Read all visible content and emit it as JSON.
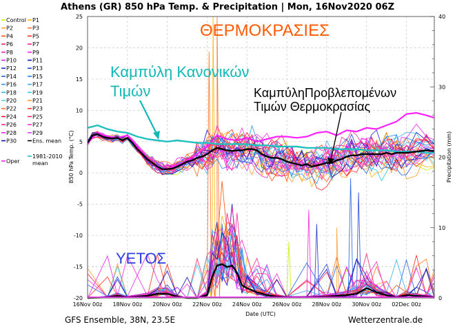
{
  "chart_data": {
    "type": "line",
    "title": "Athens  (GR)  850 hPa Temp. & Precipitation | Mon, 16Nov2020 06Z",
    "xlabel": "Date (UTC)",
    "ylabel": "850 hPa Temp. (°C)",
    "y2label": "Precipitation (mm)",
    "ylim": [
      -20,
      25
    ],
    "y2lim": [
      0,
      40
    ],
    "xlim_days": [
      0,
      17.4
    ],
    "yticks": [
      "25",
      "20",
      "15",
      "10",
      "5",
      "0",
      "-5",
      "-10",
      "-15",
      "-20"
    ],
    "y2ticks": [
      "40",
      "30",
      "20",
      "10",
      "0"
    ],
    "xticks": [
      {
        "day": 0,
        "label": "16Nov 00z"
      },
      {
        "day": 2,
        "label": "18Nov 00z"
      },
      {
        "day": 4,
        "label": "20Nov 00z"
      },
      {
        "day": 6,
        "label": "22Nov 00z"
      },
      {
        "day": 8,
        "label": "24Nov 00z"
      },
      {
        "day": 10,
        "label": "26Nov 00z"
      },
      {
        "day": 12,
        "label": "28Nov 00z"
      },
      {
        "day": 14,
        "label": "30Nov 00z"
      },
      {
        "day": 16,
        "label": "02Dec 00z"
      }
    ],
    "grid": true,
    "legend_placement": "left-outside",
    "footer_left": "GFS Ensemble, 38N, 23.5E",
    "footer_right": "Wetterzentrale.de",
    "annotations": [
      {
        "text": "ΘΕΡΜΟΚΡΑΣΙΕΣ",
        "color": "#ff5a00"
      },
      {
        "text_lines": [
          "Καμπύλη Κανονικών",
          "Τιμών"
        ],
        "color": "#10b8b8"
      },
      {
        "text_lines": [
          "ΚαμπύληΠροβλεπομένων",
          "Τιμών Θερμοκρασίας"
        ],
        "color": "#000000"
      },
      {
        "text": "ΥΕΤΟΣ",
        "color": "#2a3ee0"
      }
    ],
    "legend": [
      {
        "name": "Control",
        "color": "#c8f000"
      },
      {
        "name": "P1",
        "color": "#ffb400"
      },
      {
        "name": "P2",
        "color": "#ff9a20"
      },
      {
        "name": "P3",
        "color": "#ff6a20"
      },
      {
        "name": "P4",
        "color": "#ff5000"
      },
      {
        "name": "P5",
        "color": "#ff2020"
      },
      {
        "name": "P6",
        "color": "#ff2060"
      },
      {
        "name": "P7",
        "color": "#ff2090"
      },
      {
        "name": "P8",
        "color": "#ff20c0"
      },
      {
        "name": "P9",
        "color": "#ff20e0"
      },
      {
        "name": "P10",
        "color": "#e020f0"
      },
      {
        "name": "P11",
        "color": "#1010c0"
      },
      {
        "name": "P12",
        "color": "#2030d0"
      },
      {
        "name": "P13",
        "color": "#2040e0"
      },
      {
        "name": "P14",
        "color": "#2060e8"
      },
      {
        "name": "P15",
        "color": "#2080f0"
      },
      {
        "name": "P16",
        "color": "#3090f0"
      },
      {
        "name": "P17",
        "color": "#40a8f0"
      },
      {
        "name": "P18",
        "color": "#30b0f0"
      },
      {
        "name": "P19",
        "color": "#30c8e8"
      },
      {
        "name": "P20",
        "color": "#50d8d0"
      },
      {
        "name": "P21",
        "color": "#ffa030"
      },
      {
        "name": "P22",
        "color": "#ff7020"
      },
      {
        "name": "P23",
        "color": "#ff3020"
      },
      {
        "name": "P24",
        "color": "#ff1030"
      },
      {
        "name": "P25",
        "color": "#ff2070"
      },
      {
        "name": "P26",
        "color": "#ff20a0"
      },
      {
        "name": "P27",
        "color": "#ff30d0"
      },
      {
        "name": "P28",
        "color": "#f020f0"
      },
      {
        "name": "P29",
        "color": "#e040ff"
      },
      {
        "name": "P30",
        "color": "#1010b0"
      },
      {
        "name": "Ens. mean",
        "color": "#000000"
      },
      {
        "name": "1981-2010 mean",
        "color": "#20c0c0"
      },
      {
        "name": "Oper",
        "color": "#ff20ff"
      }
    ],
    "series_temp": {
      "ens_mean": [
        [
          0,
          4.8
        ],
        [
          0.25,
          6.0
        ],
        [
          0.5,
          6.2
        ],
        [
          0.75,
          5.8
        ],
        [
          1,
          5.6
        ],
        [
          1.25,
          5.5
        ],
        [
          1.5,
          5.6
        ],
        [
          1.75,
          5.2
        ],
        [
          2,
          5.6
        ],
        [
          2.25,
          4.8
        ],
        [
          2.5,
          3.8
        ],
        [
          2.75,
          3.0
        ],
        [
          3,
          2.2
        ],
        [
          3.25,
          1.6
        ],
        [
          3.5,
          1.0
        ],
        [
          3.75,
          0.6
        ],
        [
          4,
          0.6
        ],
        [
          4.25,
          0.7
        ],
        [
          4.5,
          1.0
        ],
        [
          4.75,
          1.4
        ],
        [
          5,
          1.8
        ],
        [
          5.25,
          2.0
        ],
        [
          5.5,
          2.4
        ],
        [
          5.75,
          2.6
        ],
        [
          6,
          3.0
        ],
        [
          6.25,
          3.6
        ],
        [
          6.5,
          4.0
        ],
        [
          6.75,
          3.8
        ],
        [
          7,
          3.6
        ],
        [
          7.25,
          3.5
        ],
        [
          7.5,
          3.6
        ],
        [
          7.75,
          3.6
        ],
        [
          8,
          3.8
        ],
        [
          8.25,
          3.8
        ],
        [
          8.5,
          3.6
        ],
        [
          8.75,
          3.0
        ],
        [
          9,
          2.6
        ],
        [
          9.25,
          2.4
        ],
        [
          9.5,
          2.4
        ],
        [
          9.75,
          2.2
        ],
        [
          10,
          1.8
        ],
        [
          10.25,
          1.6
        ],
        [
          10.5,
          1.4
        ],
        [
          10.75,
          1.2
        ],
        [
          11,
          1.4
        ],
        [
          11.25,
          1.0
        ],
        [
          11.5,
          1.2
        ],
        [
          11.75,
          1.4
        ],
        [
          12,
          1.6
        ],
        [
          12.25,
          1.6
        ],
        [
          12.5,
          2.0
        ],
        [
          12.75,
          2.2
        ],
        [
          13,
          2.6
        ],
        [
          13.25,
          2.8
        ],
        [
          13.5,
          2.8
        ],
        [
          13.75,
          3.0
        ],
        [
          14,
          3.0
        ],
        [
          14.25,
          3.0
        ],
        [
          14.5,
          3.0
        ],
        [
          14.75,
          3.0
        ],
        [
          15,
          3.2
        ],
        [
          15.25,
          3.0
        ],
        [
          15.5,
          3.2
        ],
        [
          15.75,
          3.2
        ],
        [
          16,
          3.2
        ],
        [
          16.5,
          3.4
        ],
        [
          17,
          3.6
        ],
        [
          17.4,
          3.5
        ]
      ],
      "clim_1981_2010": [
        [
          0,
          7.2
        ],
        [
          0.5,
          7.6
        ],
        [
          1,
          7.0
        ],
        [
          1.5,
          6.6
        ],
        [
          2,
          6.4
        ],
        [
          2.5,
          5.8
        ],
        [
          3,
          5.4
        ],
        [
          3.5,
          5.2
        ],
        [
          4,
          5.0
        ],
        [
          4.5,
          5.2
        ],
        [
          5,
          5.0
        ],
        [
          5.5,
          4.8
        ],
        [
          6,
          4.8
        ],
        [
          6.5,
          4.6
        ],
        [
          7,
          4.6
        ],
        [
          7.5,
          4.6
        ],
        [
          8,
          4.6
        ],
        [
          8.5,
          4.4
        ],
        [
          9,
          4.4
        ],
        [
          9.5,
          4.2
        ],
        [
          10,
          4.2
        ],
        [
          10.5,
          4.2
        ],
        [
          11,
          4.0
        ],
        [
          11.5,
          4.0
        ],
        [
          12,
          4.0
        ],
        [
          12.5,
          3.8
        ],
        [
          13,
          3.8
        ],
        [
          13.5,
          3.8
        ],
        [
          14,
          3.6
        ],
        [
          14.5,
          3.6
        ],
        [
          15,
          3.6
        ],
        [
          15.5,
          3.4
        ],
        [
          16,
          3.4
        ],
        [
          16.5,
          3.4
        ],
        [
          17,
          3.2
        ],
        [
          17.4,
          3.2
        ]
      ],
      "oper": [
        [
          0,
          4.8
        ],
        [
          0.5,
          6.4
        ],
        [
          1,
          5.8
        ],
        [
          1.5,
          5.6
        ],
        [
          2,
          6.0
        ],
        [
          2.5,
          4.2
        ],
        [
          3,
          2.4
        ],
        [
          3.5,
          0.8
        ],
        [
          4,
          0.6
        ],
        [
          4.5,
          1.2
        ],
        [
          5,
          2.0
        ],
        [
          5.5,
          3.0
        ],
        [
          6,
          4.2
        ],
        [
          6.5,
          6.0
        ],
        [
          7,
          5.4
        ],
        [
          7.5,
          5.2
        ],
        [
          8,
          5.6
        ],
        [
          8.5,
          5.0
        ],
        [
          9,
          5.4
        ],
        [
          9.5,
          5.8
        ],
        [
          10,
          5.8
        ],
        [
          10.5,
          5.6
        ],
        [
          11,
          5.8
        ],
        [
          11.5,
          6.4
        ],
        [
          12,
          6.6
        ],
        [
          12.5,
          6.0
        ],
        [
          13,
          6.8
        ],
        [
          13.5,
          6.6
        ],
        [
          14,
          7.2
        ],
        [
          14.5,
          7.0
        ],
        [
          15,
          7.6
        ],
        [
          15.5,
          8.2
        ],
        [
          16,
          9.4
        ],
        [
          16.5,
          9.6
        ],
        [
          17,
          9.2
        ],
        [
          17.4,
          8.8
        ]
      ]
    },
    "series_precip": {
      "ens_mean": [
        [
          0,
          0
        ],
        [
          1,
          0.1
        ],
        [
          1.5,
          0.3
        ],
        [
          2,
          0.1
        ],
        [
          3,
          0.3
        ],
        [
          3.5,
          0.6
        ],
        [
          4,
          0.6
        ],
        [
          4.5,
          0.2
        ],
        [
          5,
          0
        ],
        [
          5.5,
          0
        ],
        [
          6,
          0.4
        ],
        [
          6.25,
          3.0
        ],
        [
          6.5,
          4.6
        ],
        [
          6.75,
          4.8
        ],
        [
          7,
          4.4
        ],
        [
          7.25,
          4.6
        ],
        [
          7.5,
          3.6
        ],
        [
          7.75,
          1.8
        ],
        [
          8,
          1.4
        ],
        [
          8.5,
          0.8
        ],
        [
          9,
          0.4
        ],
        [
          9.5,
          0.2
        ],
        [
          10,
          0.1
        ],
        [
          11,
          0.1
        ],
        [
          12,
          0.2
        ],
        [
          12.5,
          0.3
        ],
        [
          13,
          0.4
        ],
        [
          13.5,
          0.6
        ],
        [
          14,
          1.4
        ],
        [
          14.5,
          0.8
        ],
        [
          15,
          0.4
        ],
        [
          15.5,
          0.1
        ],
        [
          16,
          0.4
        ],
        [
          16.5,
          0.3
        ],
        [
          17,
          0.2
        ],
        [
          17.4,
          0.1
        ]
      ],
      "member_peaks_mm": [
        {
          "day": 6.3,
          "value": 40,
          "member": "P1"
        },
        {
          "day": 6.5,
          "value": 40,
          "member": "P3"
        },
        {
          "day": 6.1,
          "value": 35,
          "member": "P22"
        },
        {
          "day": 10.1,
          "value": 8.0,
          "member": "Control"
        },
        {
          "day": 11.1,
          "value": 12.5,
          "member": "P9"
        },
        {
          "day": 11.5,
          "value": 10.5,
          "member": "P12"
        },
        {
          "day": 12.5,
          "value": 10.0,
          "member": "P21"
        },
        {
          "day": 13.6,
          "value": 15.0,
          "member": "P13"
        },
        {
          "day": 13.2,
          "value": 17.0,
          "member": "P14"
        }
      ]
    }
  }
}
